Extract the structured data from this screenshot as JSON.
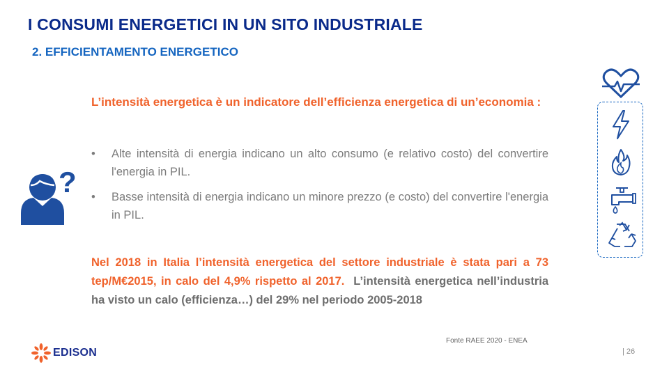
{
  "header": {
    "title": "I CONSUMI ENERGETICI IN UN SITO INDUSTRIALE",
    "subtitle": "2. EFFICIENTAMENTO  ENERGETICO"
  },
  "content": {
    "intro": "L’intensità energetica è un indicatore dell’efficienza energetica di un’economia :",
    "bullets": [
      "Alte intensità di energia indicano un alto consumo (e relativo costo) del convertire l'energia in PIL.",
      "Basse intensità di energia indicano un minore prezzo (e costo) del convertire l'energia in PIL."
    ],
    "bullet_symbol": "•",
    "stats_orange": "Nel 2018 in Italia l’intensità energetica del settore industriale è stata pari a 73 tep/M€2015, in calo del 4,9% rispetto al 2017.",
    "stats_grey": "L’intensità energetica nell’industria  ha visto un calo (efficienza…) del 29% nel periodo 2005-2018"
  },
  "footer": {
    "source": "Fonte RAEE 2020 - ENEA",
    "page": "| 26",
    "logo_text": "EDISON"
  },
  "icons": {
    "person": "person-question-icon",
    "side": [
      "heart-pulse-icon",
      "lightning-icon",
      "flame-icon",
      "water-tap-icon",
      "recycle-icon"
    ]
  },
  "colors": {
    "title": "#0a2a8a",
    "subtitle": "#1565c0",
    "accent_orange": "#f0622b",
    "body_grey": "#7b7b7b",
    "icon_blue": "#1f4fa0"
  }
}
